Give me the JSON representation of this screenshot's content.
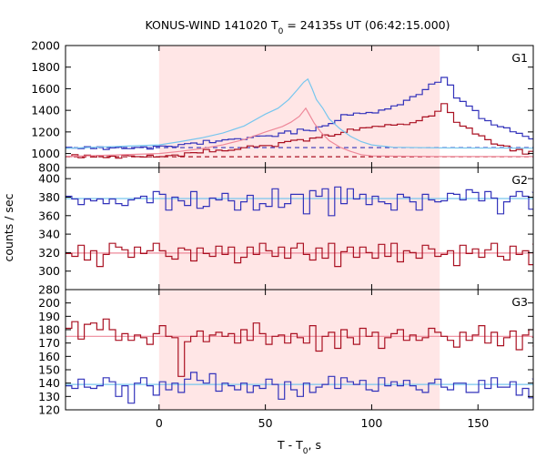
{
  "chart_data": {
    "type": "line",
    "title_main": "KONUS-WIND 141020 T",
    "title_sub": "0",
    "title_rest": " = 24135s UT (06:42:15.000)",
    "xlabel_main": "T - T",
    "xlabel_sub": "0",
    "xlabel_rest": ", s",
    "ylabel": "counts / sec",
    "xlim": [
      -44,
      176
    ],
    "xticks": [
      0,
      50,
      100,
      150
    ],
    "shaded_interval": [
      0,
      132
    ],
    "colors": {
      "shade": "#ffe6e6",
      "blue": "#3333bb",
      "red": "#aa1122",
      "lightblue": "#77c6ee",
      "pink": "#ee8899"
    },
    "panels": [
      {
        "name": "G1",
        "ylim": [
          870,
          2000
        ],
        "yticks": [
          1000,
          1200,
          1400,
          1600,
          1800,
          2000
        ],
        "extra_tick_labels": [
          "800"
        ],
        "step": 2.944,
        "series_blue": [
          1058,
          1050,
          1046,
          1063,
          1045,
          1062,
          1038,
          1052,
          1059,
          1045,
          1045,
          1056,
          1061,
          1042,
          1067,
          1070,
          1067,
          1062,
          1083,
          1092,
          1098,
          1087,
          1121,
          1101,
          1115,
          1127,
          1132,
          1137,
          1130,
          1148,
          1161,
          1163,
          1164,
          1158,
          1190,
          1208,
          1183,
          1226,
          1215,
          1210,
          1247,
          1257,
          1278,
          1305,
          1360,
          1356,
          1374,
          1370,
          1380,
          1376,
          1402,
          1413,
          1441,
          1452,
          1493,
          1527,
          1546,
          1592,
          1643,
          1660,
          1705,
          1634,
          1514,
          1482,
          1439,
          1398,
          1324,
          1304,
          1265,
          1249,
          1238,
          1201,
          1187,
          1159,
          1136,
          1128,
          1108,
          1109,
          1079,
          1096,
          1097,
          1073,
          1073,
          1048,
          1066,
          1066,
          1078,
          1062,
          1064,
          1052,
          1046,
          1060,
          1050,
          1060,
          1047,
          1040,
          1057,
          1034,
          1070,
          1055,
          1051,
          1070,
          1049,
          1048,
          1046,
          1047,
          1054,
          1045,
          1069,
          1050,
          1070,
          1054,
          1038,
          1051,
          1067,
          1048,
          1061,
          1053,
          1050,
          1060,
          1061,
          1047,
          1066,
          1042
        ],
        "series_red": [
          972,
          989,
          962,
          985,
          968,
          982,
          963,
          975,
          957,
          985,
          978,
          971,
          968,
          985,
          968,
          971,
          981,
          986,
          975,
          1007,
          1008,
          1006,
          1037,
          1016,
          1031,
          1025,
          1030,
          1039,
          1054,
          1071,
          1062,
          1073,
          1074,
          1066,
          1101,
          1111,
          1123,
          1129,
          1115,
          1143,
          1148,
          1173,
          1162,
          1177,
          1196,
          1226,
          1217,
          1238,
          1240,
          1252,
          1250,
          1267,
          1263,
          1272,
          1268,
          1286,
          1304,
          1339,
          1347,
          1391,
          1462,
          1380,
          1289,
          1254,
          1236,
          1181,
          1164,
          1128,
          1088,
          1077,
          1070,
          1025,
          1038,
          995,
          1020,
          980,
          1000,
          968,
          982,
          983,
          963,
          978,
          969,
          972,
          985,
          968,
          978,
          960,
          980,
          963,
          979,
          970,
          983,
          965,
          975,
          970,
          982,
          962,
          980,
          968,
          976,
          972,
          985,
          958,
          975,
          965,
          981,
          970,
          985,
          962,
          973,
          980,
          962,
          985,
          970,
          975,
          965,
          981,
          963,
          978,
          970,
          968,
          975,
          962,
          980
        ],
        "bg_blue": 1055,
        "bg_red": 970,
        "smooth_blue": [
          [
            -44,
            1048
          ],
          [
            0,
            1080
          ],
          [
            10,
            1110
          ],
          [
            20,
            1145
          ],
          [
            30,
            1190
          ],
          [
            40,
            1255
          ],
          [
            50,
            1365
          ],
          [
            56,
            1420
          ],
          [
            61,
            1500
          ],
          [
            65,
            1590
          ],
          [
            68,
            1660
          ],
          [
            70,
            1690
          ],
          [
            72,
            1600
          ],
          [
            74,
            1500
          ],
          [
            77,
            1420
          ],
          [
            80,
            1320
          ],
          [
            85,
            1230
          ],
          [
            90,
            1160
          ],
          [
            95,
            1110
          ],
          [
            100,
            1080
          ],
          [
            110,
            1058
          ],
          [
            132,
            1052
          ],
          [
            176,
            1050
          ]
        ],
        "smooth_red": [
          [
            -44,
            972
          ],
          [
            0,
            1000
          ],
          [
            10,
            1020
          ],
          [
            20,
            1045
          ],
          [
            30,
            1080
          ],
          [
            40,
            1130
          ],
          [
            50,
            1200
          ],
          [
            58,
            1250
          ],
          [
            62,
            1290
          ],
          [
            66,
            1345
          ],
          [
            69,
            1420
          ],
          [
            71,
            1350
          ],
          [
            73,
            1280
          ],
          [
            76,
            1200
          ],
          [
            80,
            1120
          ],
          [
            85,
            1060
          ],
          [
            90,
            1020
          ],
          [
            95,
            990
          ],
          [
            100,
            978
          ],
          [
            132,
            972
          ],
          [
            176,
            972
          ]
        ]
      },
      {
        "name": "G2",
        "ylim": [
          280,
          412
        ],
        "yticks": [
          280,
          300,
          320,
          340,
          360,
          380,
          400
        ],
        "step": 2.944,
        "series_blue": [
          381,
          378,
          372,
          378,
          376,
          378,
          373,
          378,
          373,
          371,
          377,
          379,
          381,
          374,
          386,
          383,
          366,
          380,
          376,
          371,
          386,
          368,
          370,
          379,
          377,
          384,
          376,
          366,
          375,
          382,
          366,
          373,
          370,
          389,
          369,
          373,
          383,
          383,
          362,
          387,
          381,
          389,
          360,
          391,
          373,
          389,
          378,
          383,
          372,
          381,
          375,
          373,
          366,
          383,
          380,
          375,
          366,
          383,
          377,
          375,
          376,
          384,
          383,
          377,
          388,
          385,
          376,
          386,
          379,
          362,
          375,
          381,
          386,
          381,
          367,
          385,
          380,
          376,
          384,
          378,
          373,
          376,
          374,
          375,
          380,
          376,
          384,
          376,
          384,
          375,
          385,
          372,
          378,
          374,
          387,
          382,
          374,
          377,
          379,
          388,
          379,
          385,
          375,
          385,
          388,
          376,
          380,
          385,
          382,
          375,
          385,
          380,
          379,
          385,
          382,
          381,
          376,
          377,
          385,
          381,
          391,
          382,
          381,
          388,
          378,
          380,
          379,
          385,
          384
        ],
        "series_red": [
          319,
          316,
          328,
          312,
          322,
          305,
          318,
          330,
          326,
          323,
          315,
          326,
          319,
          322,
          330,
          322,
          316,
          313,
          325,
          323,
          311,
          325,
          319,
          316,
          327,
          318,
          326,
          309,
          315,
          326,
          318,
          330,
          322,
          316,
          326,
          314,
          325,
          330,
          318,
          312,
          325,
          314,
          330,
          305,
          321,
          326,
          315,
          326,
          320,
          314,
          329,
          316,
          330,
          310,
          322,
          320,
          314,
          328,
          324,
          316,
          318,
          322,
          306,
          328,
          319,
          324,
          315,
          323,
          330,
          316,
          312,
          327,
          318,
          322,
          307,
          325,
          329,
          314,
          322,
          322,
          316,
          323,
          316,
          318,
          323,
          319,
          327,
          316,
          321,
          313,
          322,
          330,
          314,
          306,
          321,
          325,
          318,
          304,
          319,
          324,
          330,
          317,
          311,
          321,
          327,
          318,
          323,
          315,
          320,
          324,
          316,
          326,
          321,
          314,
          320,
          325,
          319,
          315,
          323,
          320,
          317,
          324,
          319,
          316,
          322,
          320,
          318,
          321
        ],
        "bg_blue": 378.5,
        "bg_red": 319.5
      },
      {
        "name": "G3",
        "ylim": [
          120,
          210
        ],
        "yticks": [
          120,
          130,
          140,
          150,
          160,
          170,
          180,
          190,
          200
        ],
        "step": 2.944,
        "series_red": [
          181,
          186,
          173,
          184,
          185,
          180,
          188,
          180,
          172,
          177,
          172,
          176,
          174,
          169,
          177,
          183,
          175,
          174,
          145,
          171,
          175,
          179,
          171,
          176,
          178,
          175,
          177,
          170,
          180,
          172,
          185,
          177,
          169,
          175,
          176,
          170,
          177,
          174,
          170,
          183,
          164,
          175,
          178,
          166,
          180,
          174,
          169,
          181,
          175,
          178,
          166,
          174,
          177,
          180,
          172,
          176,
          172,
          174,
          181,
          178,
          175,
          172,
          167,
          178,
          172,
          176,
          183,
          170,
          178,
          168,
          174,
          179,
          165,
          176,
          180,
          168,
          177,
          174,
          164,
          172,
          180,
          172,
          168,
          175,
          178,
          170,
          182,
          171,
          174,
          160,
          178,
          173,
          179,
          168,
          176,
          171,
          193,
          176,
          172,
          175,
          169,
          173,
          177,
          166,
          174,
          168,
          165,
          178,
          174,
          172,
          176,
          175,
          174,
          178,
          170,
          173,
          176,
          172,
          170,
          175,
          178,
          172,
          169,
          176,
          171,
          174,
          178,
          168,
          173
        ],
        "series_blue": [
          138,
          136,
          143,
          137,
          136,
          138,
          144,
          141,
          130,
          138,
          125,
          140,
          144,
          138,
          131,
          141,
          135,
          140,
          133,
          143,
          148,
          142,
          140,
          147,
          134,
          140,
          138,
          135,
          140,
          133,
          138,
          136,
          143,
          139,
          128,
          141,
          135,
          130,
          140,
          133,
          137,
          139,
          145,
          136,
          144,
          141,
          139,
          142,
          135,
          134,
          144,
          138,
          141,
          138,
          142,
          138,
          135,
          133,
          140,
          143,
          137,
          135,
          140,
          140,
          133,
          133,
          142,
          136,
          144,
          137,
          137,
          141,
          131,
          136,
          129,
          139,
          140,
          143,
          133,
          136,
          134,
          138,
          140,
          142,
          145,
          139,
          131,
          138,
          131,
          141,
          136,
          137,
          138,
          131,
          140,
          135,
          141,
          134,
          133,
          141,
          143,
          138,
          137,
          143,
          141,
          129,
          138,
          139,
          133,
          140,
          131,
          142,
          137,
          141,
          144,
          133,
          141,
          137,
          140,
          138,
          136,
          142,
          138,
          132,
          139,
          131,
          141,
          135,
          138
        ],
        "bg_red": 175,
        "bg_blue": 139
      }
    ]
  }
}
